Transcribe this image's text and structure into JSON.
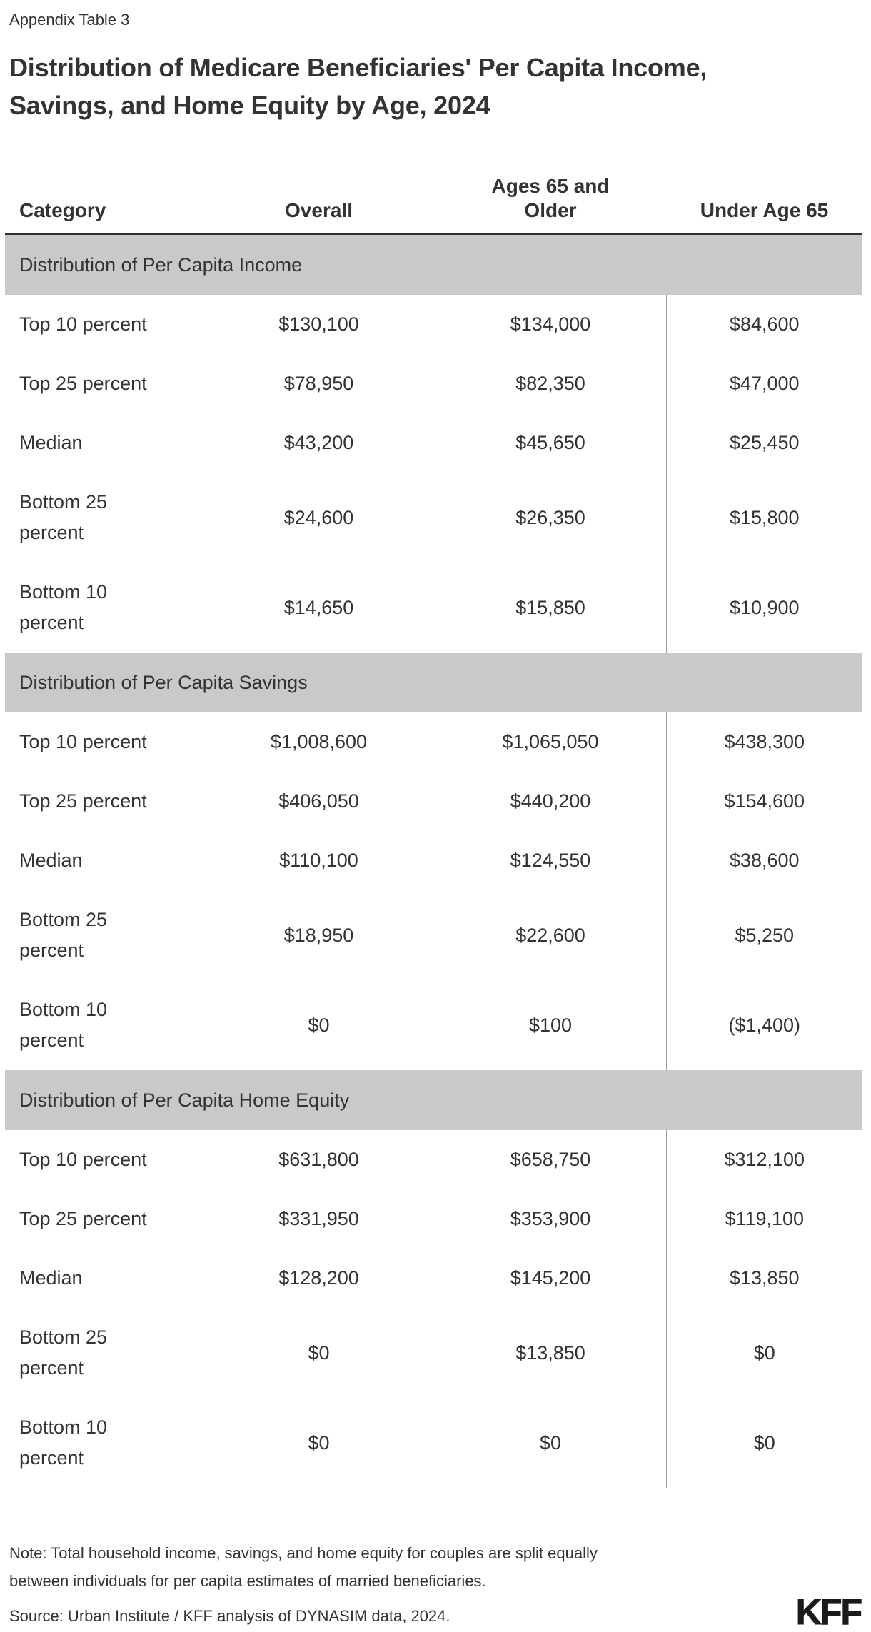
{
  "page": {
    "kicker": "Appendix Table 3",
    "title": "Distribution of Medicare Beneficiaries' Per Capita Income, Savings, and Home Equity by Age, 2024",
    "note": "Note: Total household income, savings, and home equity for couples are split equally between individuals for per capita estimates of married beneficiaries.",
    "source": "Source: Urban Institute / KFF analysis of DYNASIM data, 2024.",
    "logo": "KFF"
  },
  "colors": {
    "bg": "#ffffff",
    "text": "#333333",
    "band": "#c9c9c9",
    "divider": "#a0a0a0",
    "rule": "#333333",
    "logo": "#1a1a1a"
  },
  "table": {
    "columns": [
      "Category",
      "Overall",
      "Ages 65 and Older",
      "Under Age 65"
    ],
    "sections": [
      {
        "header": "Distribution of Per Capita Income",
        "rows": [
          {
            "label": "Top 10 percent",
            "values": [
              "$130,100",
              "$134,000",
              "$84,600"
            ]
          },
          {
            "label": "Top 25 percent",
            "values": [
              "$78,950",
              "$82,350",
              "$47,000"
            ]
          },
          {
            "label": "Median",
            "values": [
              "$43,200",
              "$45,650",
              "$25,450"
            ]
          },
          {
            "label": "Bottom 25 percent",
            "values": [
              "$24,600",
              "$26,350",
              "$15,800"
            ]
          },
          {
            "label": "Bottom 10 percent",
            "values": [
              "$14,650",
              "$15,850",
              "$10,900"
            ]
          }
        ]
      },
      {
        "header": "Distribution of Per Capita Savings",
        "rows": [
          {
            "label": "Top 10 percent",
            "values": [
              "$1,008,600",
              "$1,065,050",
              "$438,300"
            ]
          },
          {
            "label": "Top 25 percent",
            "values": [
              "$406,050",
              "$440,200",
              "$154,600"
            ]
          },
          {
            "label": "Median",
            "values": [
              "$110,100",
              "$124,550",
              "$38,600"
            ]
          },
          {
            "label": "Bottom 25 percent",
            "values": [
              "$18,950",
              "$22,600",
              "$5,250"
            ]
          },
          {
            "label": "Bottom 10 percent",
            "values": [
              "$0",
              "$100",
              "($1,400)"
            ]
          }
        ]
      },
      {
        "header": "Distribution of Per Capita Home Equity",
        "rows": [
          {
            "label": "Top 10 percent",
            "values": [
              "$631,800",
              "$658,750",
              "$312,100"
            ]
          },
          {
            "label": "Top 25 percent",
            "values": [
              "$331,950",
              "$353,900",
              "$119,100"
            ]
          },
          {
            "label": "Median",
            "values": [
              "$128,200",
              "$145,200",
              "$13,850"
            ]
          },
          {
            "label": "Bottom 25 percent",
            "values": [
              "$0",
              "$13,850",
              "$0"
            ]
          },
          {
            "label": "Bottom 10 percent",
            "values": [
              "$0",
              "$0",
              "$0"
            ]
          }
        ]
      }
    ]
  },
  "chart_data": {
    "type": "table",
    "title": "Distribution of Medicare Beneficiaries' Per Capita Income, Savings, and Home Equity by Age, 2024",
    "table_label": "Appendix Table 3",
    "columns": [
      "Category",
      "Overall",
      "Ages 65 and Older",
      "Under Age 65"
    ],
    "sections": [
      {
        "name": "Distribution of Per Capita Income",
        "rows": [
          [
            "Top 10 percent",
            130100,
            134000,
            84600
          ],
          [
            "Top 25 percent",
            78950,
            82350,
            47000
          ],
          [
            "Median",
            43200,
            45650,
            25450
          ],
          [
            "Bottom 25 percent",
            24600,
            26350,
            15800
          ],
          [
            "Bottom 10 percent",
            14650,
            15850,
            10900
          ]
        ]
      },
      {
        "name": "Distribution of Per Capita Savings",
        "rows": [
          [
            "Top 10 percent",
            1008600,
            1065050,
            438300
          ],
          [
            "Top 25 percent",
            406050,
            440200,
            154600
          ],
          [
            "Median",
            110100,
            124550,
            38600
          ],
          [
            "Bottom 25 percent",
            18950,
            22600,
            5250
          ],
          [
            "Bottom 10 percent",
            0,
            100,
            -1400
          ]
        ]
      },
      {
        "name": "Distribution of Per Capita Home Equity",
        "rows": [
          [
            "Top 10 percent",
            631800,
            658750,
            312100
          ],
          [
            "Top 25 percent",
            331950,
            353900,
            119100
          ],
          [
            "Median",
            128200,
            145200,
            13850
          ],
          [
            "Bottom 25 percent",
            0,
            13850,
            0
          ],
          [
            "Bottom 10 percent",
            0,
            0,
            0
          ]
        ]
      }
    ],
    "units": "USD",
    "note": "Note: Total household income, savings, and home equity for couples are split equally between individuals for per capita estimates of married beneficiaries.",
    "source": "Source: Urban Institute / KFF analysis of DYNASIM data, 2024."
  }
}
